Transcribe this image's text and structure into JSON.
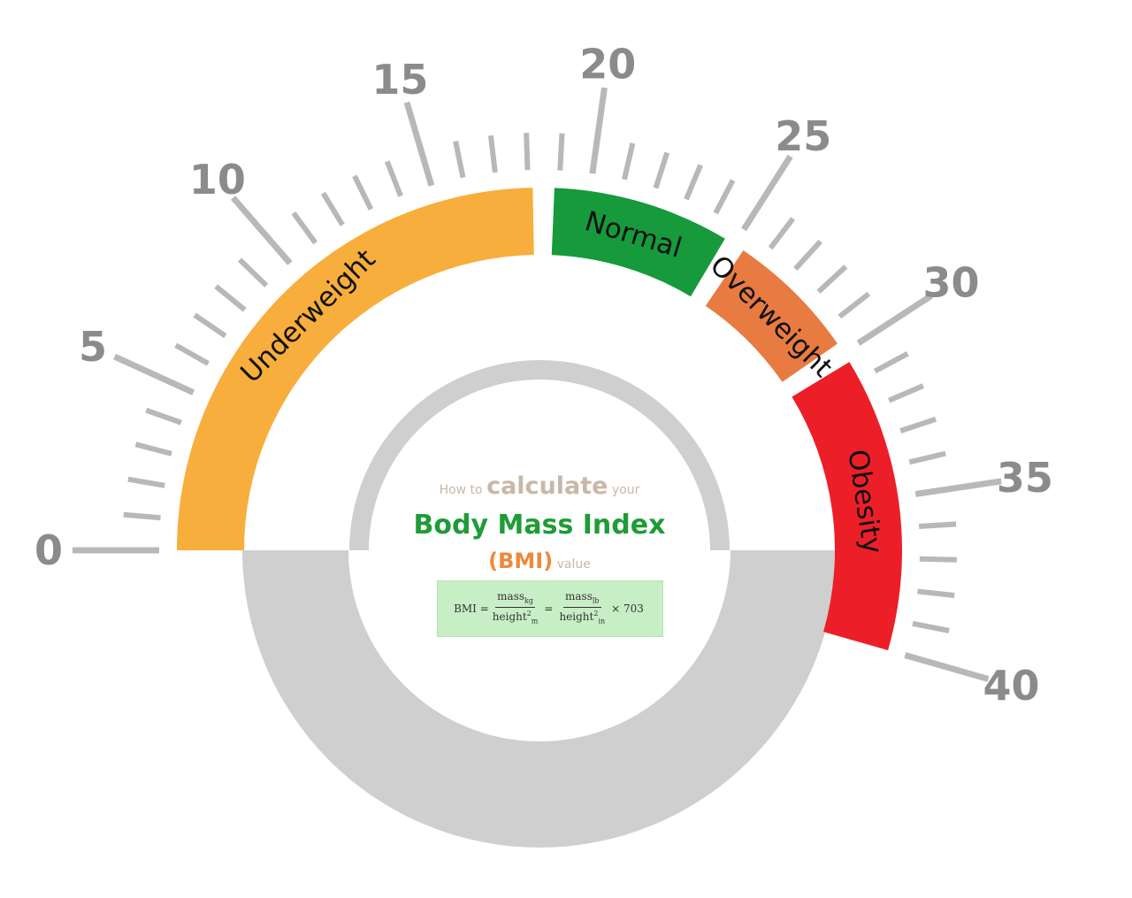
{
  "scale": {
    "min": 0,
    "max": 40,
    "major_ticks": [
      0,
      5,
      10,
      15,
      20,
      25,
      30,
      35,
      40
    ],
    "minor_step": 1,
    "tick_color": "#b8b8b8",
    "number_color": "#8b8b8b"
  },
  "zones": [
    {
      "label": "Underweight",
      "from": 0,
      "to": 18.5,
      "color": "#f8ae3c"
    },
    {
      "label": "Normal",
      "from": 18.5,
      "to": 25,
      "color": "#169a3c"
    },
    {
      "label": "Overweight",
      "from": 25,
      "to": 30,
      "color": "#e87b41"
    },
    {
      "label": "Obesity",
      "from": 30,
      "to": 40,
      "color": "#ec1f28"
    }
  ],
  "center": {
    "line1_small_a": "How to",
    "line1_big": "calculate",
    "line1_small_b": "your",
    "title": "Body Mass Index",
    "abbr": "(BMI)",
    "abbr_suffix": "value",
    "ring_color": "#cfcfcf",
    "title_color": "#1e9c37",
    "accent_color": "#ec8a3d",
    "muted_color": "#c9b8a8"
  },
  "formula": {
    "lhs": "BMI =",
    "num1": "mass",
    "num1_sub": "kg",
    "den1": "height",
    "den1_sup": "2",
    "den1_sub": "m",
    "eq": "=",
    "num2": "mass",
    "num2_sub": "lb",
    "den2": "height",
    "den2_sup": "2",
    "den2_sub": "in",
    "mult": "× 703",
    "box_color": "#c8eec6"
  }
}
